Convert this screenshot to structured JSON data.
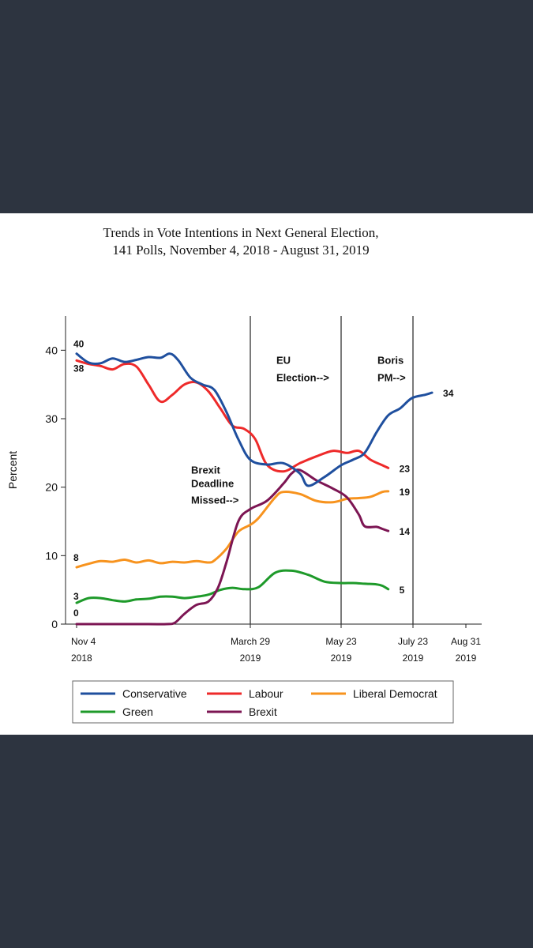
{
  "page": {
    "background": "#2d3440",
    "photo_background": "#ffffff"
  },
  "chart_data": {
    "type": "line",
    "title": [
      "Trends in Vote Intentions in Next General Election,",
      "141 Polls, November 4, 2018 - August 31, 2019"
    ],
    "xlabel": "",
    "ylabel": "Percent",
    "ylim": [
      0,
      45
    ],
    "yticks": [
      0,
      10,
      20,
      30,
      40
    ],
    "xlim": [
      0,
      300
    ],
    "xticks": [
      {
        "pos": 0,
        "line1": "Nov 4",
        "line2": "2018"
      },
      {
        "pos": 145,
        "line1": "March 29",
        "line2": "2019"
      },
      {
        "pos": 200,
        "line1": "May 23",
        "line2": "2019"
      },
      {
        "pos": 261,
        "line1": "July 23",
        "line2": "2019"
      },
      {
        "pos": 300,
        "line1": "Aug 31",
        "line2": "2019"
      }
    ],
    "events": [
      {
        "x": 145,
        "lines": [
          "Brexit",
          "Deadline",
          "Missed-->"
        ],
        "y": [
          22,
          20,
          17.6
        ]
      },
      {
        "x": 200,
        "lines": [
          "EU",
          "Election-->"
        ],
        "y": [
          38,
          35.5
        ]
      },
      {
        "x": 261,
        "lines": [
          "Boris",
          "PM-->"
        ],
        "y": [
          38,
          35.5
        ]
      }
    ],
    "series": [
      {
        "name": "Conservative",
        "color": "#1f4f9e",
        "start_label": "40",
        "end_label": "34",
        "points": [
          [
            0,
            39.5
          ],
          [
            10,
            38.2
          ],
          [
            20,
            38.1
          ],
          [
            30,
            38.8
          ],
          [
            40,
            38.3
          ],
          [
            50,
            38.6
          ],
          [
            60,
            39
          ],
          [
            70,
            38.9
          ],
          [
            78,
            39.5
          ],
          [
            85,
            38.5
          ],
          [
            95,
            36
          ],
          [
            105,
            35
          ],
          [
            115,
            34.2
          ],
          [
            125,
            31
          ],
          [
            135,
            27
          ],
          [
            145,
            24
          ],
          [
            155,
            23.3
          ],
          [
            165,
            23.5
          ],
          [
            175,
            22
          ],
          [
            180,
            20.2
          ],
          [
            190,
            21.5
          ],
          [
            200,
            23.2
          ],
          [
            210,
            24
          ],
          [
            220,
            25
          ],
          [
            230,
            28
          ],
          [
            240,
            30.5
          ],
          [
            250,
            31.5
          ],
          [
            260,
            33
          ],
          [
            270,
            33.5
          ],
          [
            275,
            33.8
          ]
        ]
      },
      {
        "name": "Labour",
        "color": "#ee2a2a",
        "start_label": "38",
        "end_label": "23",
        "points": [
          [
            0,
            38.5
          ],
          [
            10,
            38
          ],
          [
            20,
            37.7
          ],
          [
            30,
            37.2
          ],
          [
            40,
            38
          ],
          [
            50,
            37.6
          ],
          [
            60,
            35
          ],
          [
            70,
            32.5
          ],
          [
            80,
            33.5
          ],
          [
            90,
            35
          ],
          [
            100,
            35.3
          ],
          [
            110,
            34
          ],
          [
            120,
            31.5
          ],
          [
            130,
            29
          ],
          [
            140,
            28.5
          ],
          [
            148,
            27
          ],
          [
            155,
            23.3
          ],
          [
            165,
            22.3
          ],
          [
            175,
            23.5
          ],
          [
            185,
            24.5
          ],
          [
            195,
            25.3
          ],
          [
            205,
            25
          ],
          [
            215,
            25.3
          ],
          [
            225,
            24
          ],
          [
            235,
            23.2
          ],
          [
            240,
            22.8
          ]
        ]
      },
      {
        "name": "Liberal Democrat",
        "color": "#f7931e",
        "start_label": "8",
        "end_label": "19",
        "points": [
          [
            0,
            8.3
          ],
          [
            10,
            8.8
          ],
          [
            20,
            9.2
          ],
          [
            30,
            9.1
          ],
          [
            40,
            9.4
          ],
          [
            50,
            9
          ],
          [
            60,
            9.3
          ],
          [
            70,
            8.9
          ],
          [
            80,
            9.1
          ],
          [
            90,
            9
          ],
          [
            100,
            9.2
          ],
          [
            110,
            9
          ],
          [
            115,
            9.3
          ],
          [
            125,
            11
          ],
          [
            135,
            13.5
          ],
          [
            145,
            14.5
          ],
          [
            150,
            15.5
          ],
          [
            160,
            18.5
          ],
          [
            165,
            19.3
          ],
          [
            175,
            19
          ],
          [
            185,
            18
          ],
          [
            195,
            17.8
          ],
          [
            205,
            18.3
          ],
          [
            215,
            18.4
          ],
          [
            225,
            18.6
          ],
          [
            235,
            19.3
          ],
          [
            240,
            19.4
          ]
        ]
      },
      {
        "name": "Green",
        "color": "#1e9a2a",
        "start_label": "3",
        "end_label": "5",
        "points": [
          [
            0,
            3.1
          ],
          [
            10,
            3.8
          ],
          [
            20,
            3.8
          ],
          [
            30,
            3.5
          ],
          [
            40,
            3.3
          ],
          [
            50,
            3.6
          ],
          [
            60,
            3.7
          ],
          [
            70,
            4
          ],
          [
            80,
            4
          ],
          [
            90,
            3.8
          ],
          [
            100,
            4
          ],
          [
            110,
            4.3
          ],
          [
            120,
            5
          ],
          [
            130,
            5.3
          ],
          [
            140,
            5.1
          ],
          [
            150,
            5.4
          ],
          [
            160,
            7.5
          ],
          [
            170,
            7.8
          ],
          [
            180,
            7.2
          ],
          [
            190,
            6.2
          ],
          [
            200,
            6
          ],
          [
            210,
            6
          ],
          [
            220,
            5.9
          ],
          [
            230,
            5.8
          ],
          [
            235,
            5.6
          ],
          [
            240,
            5.1
          ]
        ]
      },
      {
        "name": "Brexit",
        "color": "#7c1553",
        "start_label": "0",
        "end_label": "14",
        "points": [
          [
            0,
            0
          ],
          [
            30,
            0
          ],
          [
            60,
            0
          ],
          [
            75,
            0
          ],
          [
            82,
            0.2
          ],
          [
            90,
            1.5
          ],
          [
            100,
            2.8
          ],
          [
            110,
            3.3
          ],
          [
            118,
            5.3
          ],
          [
            125,
            9
          ],
          [
            135,
            15
          ],
          [
            145,
            16.8
          ],
          [
            155,
            18
          ],
          [
            165,
            20.5
          ],
          [
            170,
            22
          ],
          [
            175,
            22.5
          ],
          [
            185,
            21
          ],
          [
            195,
            19.8
          ],
          [
            205,
            18.5
          ],
          [
            215,
            16
          ],
          [
            220,
            14.3
          ],
          [
            230,
            14.2
          ],
          [
            235,
            13.9
          ],
          [
            240,
            13.6
          ]
        ]
      }
    ]
  }
}
